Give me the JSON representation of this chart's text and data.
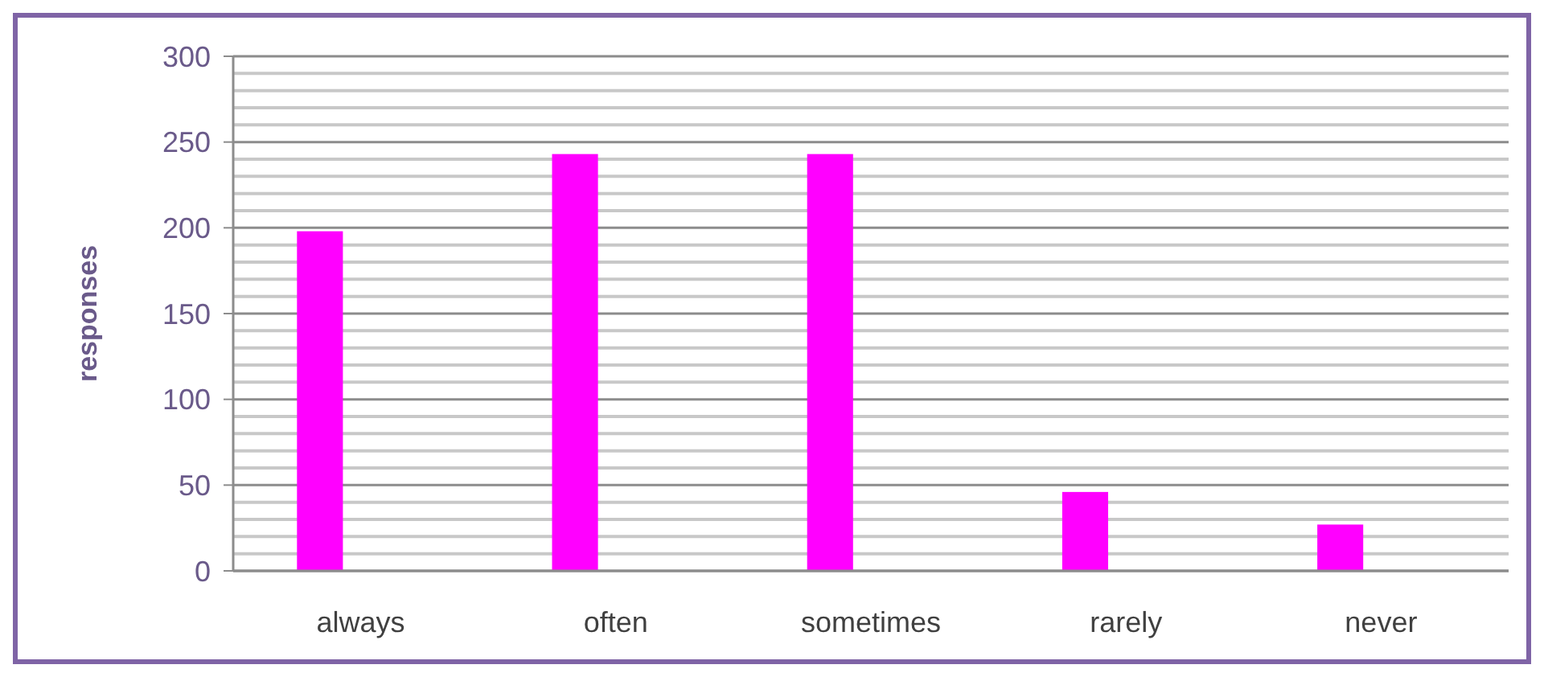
{
  "chart_data": {
    "type": "bar",
    "ylabel": "responses",
    "categories": [
      "always",
      "often",
      "sometimes",
      "rarely",
      "never"
    ],
    "values": [
      198,
      243,
      243,
      46,
      27
    ],
    "color": "#ff00ff",
    "ylim": [
      0,
      300
    ],
    "yticks": [
      0,
      {
        "value": 10,
        "label": null
      },
      {
        "value": 20,
        "label": null
      },
      {
        "value": 30,
        "label": null
      },
      {
        "value": 40,
        "label": null
      },
      50,
      {
        "value": 60,
        "label": null
      },
      {
        "value": 70,
        "label": null
      },
      {
        "value": 80,
        "label": null
      },
      {
        "value": 90,
        "label": null
      },
      100,
      {
        "value": 110,
        "label": null
      },
      {
        "value": 120,
        "label": null
      },
      {
        "value": 130,
        "label": null
      },
      {
        "value": 140,
        "label": null
      },
      150,
      {
        "value": 160,
        "label": null
      },
      {
        "value": 170,
        "label": null
      },
      {
        "value": 180,
        "label": null
      },
      {
        "value": 190,
        "label": null
      },
      200,
      {
        "value": 210,
        "label": null
      },
      {
        "value": 220,
        "label": null
      },
      {
        "value": 230,
        "label": null
      },
      {
        "value": 240,
        "label": null
      },
      250,
      {
        "value": 260,
        "label": null
      },
      {
        "value": 270,
        "label": null
      },
      {
        "value": 280,
        "label": null
      },
      {
        "value": 290,
        "label": null
      },
      300
    ],
    "grid": true
  }
}
